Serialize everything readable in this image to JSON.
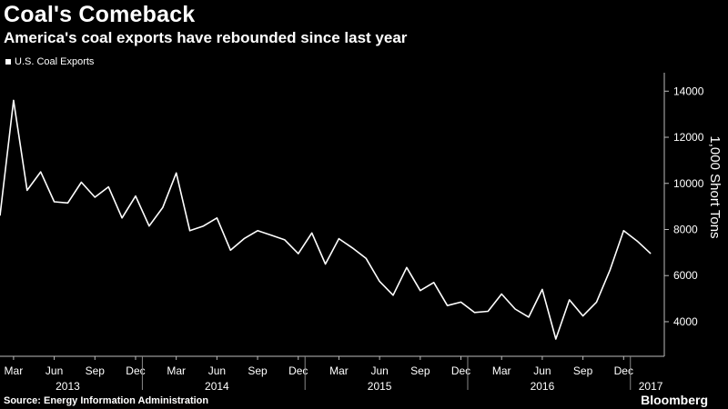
{
  "header": {
    "title": "Coal's Comeback",
    "subtitle": "America's coal exports have rebounded since last year"
  },
  "legend": {
    "label": "U.S. Coal Exports"
  },
  "footer": {
    "source": "Source: Energy Information Administration",
    "brand": "Bloomberg"
  },
  "chart_data": {
    "type": "line",
    "title": "Coal's Comeback",
    "subtitle": "America's coal exports have rebounded since last year",
    "ylabel": "1,000 Short Tons",
    "ylim": [
      2500,
      14800
    ],
    "yticks": [
      4000,
      6000,
      8000,
      10000,
      12000,
      14000
    ],
    "y_axis_position": "right",
    "grid": false,
    "legend_position": "top-left",
    "color": "#ffffff",
    "x_start": "2013-02",
    "x_end": "2017-03",
    "month_ticks": [
      {
        "label": "Mar",
        "date": "2013-03"
      },
      {
        "label": "Jun",
        "date": "2013-06"
      },
      {
        "label": "Sep",
        "date": "2013-09"
      },
      {
        "label": "Dec",
        "date": "2013-12"
      },
      {
        "label": "Mar",
        "date": "2014-03"
      },
      {
        "label": "Jun",
        "date": "2014-06"
      },
      {
        "label": "Sep",
        "date": "2014-09"
      },
      {
        "label": "Dec",
        "date": "2014-12"
      },
      {
        "label": "Mar",
        "date": "2015-03"
      },
      {
        "label": "Jun",
        "date": "2015-06"
      },
      {
        "label": "Sep",
        "date": "2015-09"
      },
      {
        "label": "Dec",
        "date": "2015-12"
      },
      {
        "label": "Mar",
        "date": "2016-03"
      },
      {
        "label": "Jun",
        "date": "2016-06"
      },
      {
        "label": "Sep",
        "date": "2016-09"
      },
      {
        "label": "Dec",
        "date": "2016-12"
      }
    ],
    "year_ticks": [
      {
        "label": "2013",
        "date": "2013-07"
      },
      {
        "label": "2014",
        "date": "2014-06"
      },
      {
        "label": "2015",
        "date": "2015-06"
      },
      {
        "label": "2016",
        "date": "2016-06"
      },
      {
        "label": "2017",
        "date": "2017-02"
      }
    ],
    "year_dividers": [
      "2013-12",
      "2014-12",
      "2015-12",
      "2016-12"
    ],
    "series": [
      {
        "name": "U.S. Coal Exports",
        "x": [
          "2013-02",
          "2013-03",
          "2013-04",
          "2013-05",
          "2013-06",
          "2013-07",
          "2013-08",
          "2013-09",
          "2013-10",
          "2013-11",
          "2013-12",
          "2014-01",
          "2014-02",
          "2014-03",
          "2014-04",
          "2014-05",
          "2014-06",
          "2014-07",
          "2014-08",
          "2014-09",
          "2014-10",
          "2014-11",
          "2014-12",
          "2015-01",
          "2015-02",
          "2015-03",
          "2015-04",
          "2015-05",
          "2015-06",
          "2015-07",
          "2015-08",
          "2015-09",
          "2015-10",
          "2015-11",
          "2015-12",
          "2016-01",
          "2016-02",
          "2016-03",
          "2016-04",
          "2016-05",
          "2016-06",
          "2016-07",
          "2016-08",
          "2016-09",
          "2016-10",
          "2016-11",
          "2016-12",
          "2017-01",
          "2017-02"
        ],
        "values": [
          8600,
          13600,
          9700,
          10500,
          9200,
          9150,
          10050,
          9400,
          9850,
          8500,
          9450,
          8150,
          8950,
          10450,
          7950,
          8150,
          8500,
          7100,
          7600,
          7950,
          7750,
          7550,
          6950,
          7850,
          6500,
          7600,
          7200,
          6750,
          5750,
          5150,
          6350,
          5350,
          5700,
          4700,
          4850,
          4400,
          4450,
          5200,
          4550,
          4200,
          5400,
          3250,
          4950,
          4250,
          4850,
          6250,
          7950,
          7500,
          6950
        ]
      }
    ]
  }
}
